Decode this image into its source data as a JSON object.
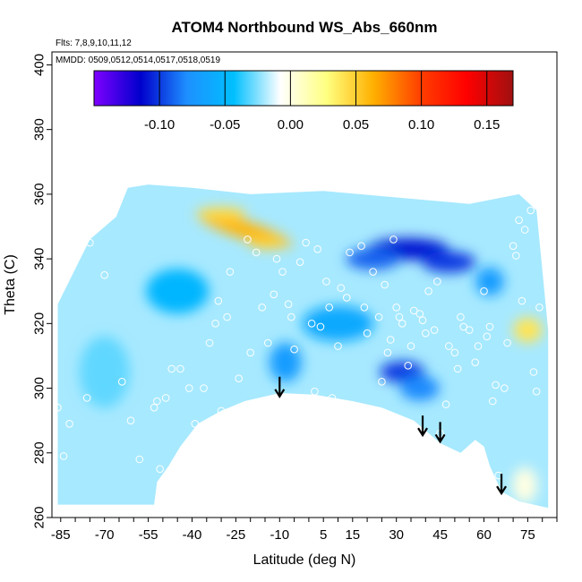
{
  "chart_data": {
    "type": "heatmap",
    "title": "ATOM4 Northbound WS_Abs_660nm",
    "flights_note": "Flts: 7,8,9,10,11,12",
    "dates_note": "MMDD: 0509,0512,0514,0517,0518,0519",
    "xlabel": "Latitude (deg N)",
    "ylabel": "Theta (C)",
    "xlim": [
      -88,
      85
    ],
    "ylim": [
      260,
      404
    ],
    "x_ticks": [
      -85,
      -70,
      -55,
      -40,
      -25,
      -10,
      5,
      15,
      30,
      45,
      60,
      75
    ],
    "y_ticks": [
      260,
      280,
      300,
      320,
      340,
      360,
      380,
      400
    ],
    "colorbar": {
      "range": [
        -0.15,
        0.17
      ],
      "ticks": [
        -0.1,
        -0.05,
        0.0,
        0.05,
        0.1,
        0.15
      ],
      "tick_labels": [
        "-0.10",
        "-0.05",
        "0.00",
        "0.05",
        "0.10",
        "0.15"
      ],
      "colors": [
        "#7f00ff",
        "#0000cc",
        "#1e90ff",
        "#00bfff",
        "#ffffff",
        "#ffff80",
        "#ffb000",
        "#ff4000",
        "#ff0000",
        "#a01010"
      ]
    },
    "background_value": -0.02,
    "features": [
      {
        "lat": -22,
        "theta": 349,
        "value": 0.06,
        "note": "yellow band"
      },
      {
        "lat": -30,
        "theta": 354,
        "value": 0.045
      },
      {
        "lat": -14,
        "theta": 345,
        "value": 0.05
      },
      {
        "lat": 34,
        "theta": 343,
        "value": -0.11
      },
      {
        "lat": 22,
        "theta": 340,
        "value": -0.09
      },
      {
        "lat": 48,
        "theta": 339,
        "value": -0.1
      },
      {
        "lat": 32,
        "theta": 305,
        "value": -0.1
      },
      {
        "lat": 38,
        "theta": 300,
        "value": -0.08
      },
      {
        "lat": -8,
        "theta": 308,
        "value": -0.07
      },
      {
        "lat": 62,
        "theta": 333,
        "value": -0.07
      },
      {
        "lat": 75,
        "theta": 318,
        "value": 0.04
      },
      {
        "lat": -70,
        "theta": 305,
        "value": -0.03
      },
      {
        "lat": -45,
        "theta": 330,
        "value": -0.05
      },
      {
        "lat": 10,
        "theta": 320,
        "value": -0.06
      },
      {
        "lat": 74,
        "theta": 270,
        "value": 0.0
      }
    ],
    "arrows": [
      {
        "lat": -10,
        "theta": 298
      },
      {
        "lat": 39,
        "theta": 286
      },
      {
        "lat": 45,
        "theta": 284
      },
      {
        "lat": 66,
        "theta": 268
      }
    ],
    "sample_points": [
      [
        -86,
        294
      ],
      [
        -82,
        289
      ],
      [
        -84,
        279
      ],
      [
        -79,
        342
      ],
      [
        -76,
        297
      ],
      [
        -75,
        345
      ],
      [
        -70,
        335
      ],
      [
        -64,
        302
      ],
      [
        -61,
        290
      ],
      [
        -58,
        278
      ],
      [
        -53,
        294
      ],
      [
        -52,
        296
      ],
      [
        -51,
        275
      ],
      [
        -49,
        297
      ],
      [
        -47,
        306
      ],
      [
        -44,
        306
      ],
      [
        -41,
        300
      ],
      [
        -39,
        289
      ],
      [
        -36,
        300
      ],
      [
        -34,
        314
      ],
      [
        -32,
        320
      ],
      [
        -31,
        327
      ],
      [
        -30,
        293
      ],
      [
        -28,
        322
      ],
      [
        -27,
        336
      ],
      [
        -24,
        303
      ],
      [
        -21,
        346
      ],
      [
        -20,
        311
      ],
      [
        -18,
        342
      ],
      [
        -16,
        325
      ],
      [
        -14,
        314
      ],
      [
        -12,
        329
      ],
      [
        -11,
        340
      ],
      [
        -9,
        336
      ],
      [
        -7,
        326
      ],
      [
        -6,
        322
      ],
      [
        -5,
        312
      ],
      [
        -3,
        339
      ],
      [
        -1,
        345
      ],
      [
        1,
        320
      ],
      [
        2,
        299
      ],
      [
        3,
        343
      ],
      [
        4,
        319
      ],
      [
        6,
        333
      ],
      [
        7,
        325
      ],
      [
        8,
        297
      ],
      [
        10,
        313
      ],
      [
        11,
        331
      ],
      [
        13,
        328
      ],
      [
        14,
        342
      ],
      [
        16,
        294
      ],
      [
        18,
        344
      ],
      [
        19,
        325
      ],
      [
        20,
        317
      ],
      [
        22,
        336
      ],
      [
        24,
        322
      ],
      [
        25,
        302
      ],
      [
        26,
        332
      ],
      [
        27,
        311
      ],
      [
        28,
        315
      ],
      [
        29,
        346
      ],
      [
        30,
        325
      ],
      [
        31,
        322
      ],
      [
        32,
        320
      ],
      [
        34,
        307
      ],
      [
        35,
        313
      ],
      [
        36,
        324
      ],
      [
        38,
        323
      ],
      [
        39,
        321
      ],
      [
        40,
        317
      ],
      [
        41,
        330
      ],
      [
        43,
        318
      ],
      [
        44,
        333
      ],
      [
        45,
        286
      ],
      [
        47,
        295
      ],
      [
        48,
        313
      ],
      [
        50,
        311
      ],
      [
        51,
        306
      ],
      [
        52,
        322
      ],
      [
        53,
        319
      ],
      [
        55,
        318
      ],
      [
        57,
        308
      ],
      [
        58,
        313
      ],
      [
        59,
        281
      ],
      [
        60,
        330
      ],
      [
        61,
        316
      ],
      [
        62,
        319
      ],
      [
        63,
        296
      ],
      [
        64,
        301
      ],
      [
        65,
        273
      ],
      [
        67,
        300
      ],
      [
        68,
        314
      ],
      [
        70,
        344
      ],
      [
        71,
        341
      ],
      [
        72,
        352
      ],
      [
        73,
        327
      ],
      [
        74,
        349
      ],
      [
        76,
        355
      ],
      [
        77,
        305
      ],
      [
        78,
        299
      ],
      [
        79,
        325
      ]
    ]
  }
}
